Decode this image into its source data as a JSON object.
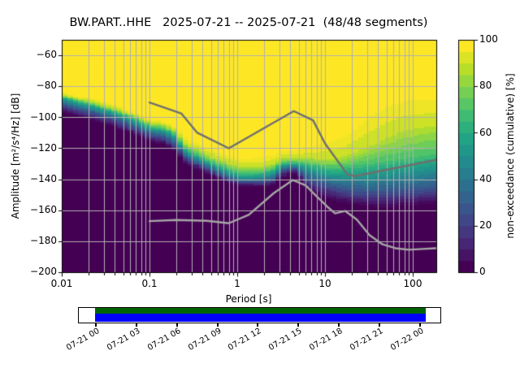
{
  "figure": {
    "title": "BW.PART..HHE   2025-07-21 -- 2025-07-21  (48/48 segments)",
    "background": "#ffffff"
  },
  "chart_data": {
    "type": "heatmap",
    "title": "BW.PART..HHE   2025-07-21 -- 2025-07-21  (48/48 segments)",
    "xlabel": "Period [s]",
    "ylabel": "Amplitude [m²/s⁴/Hz] [dB]",
    "colorbar_label": "non-exceedance (cumulative) [%]",
    "x_axis": {
      "scale": "log",
      "range_s": [
        0.01,
        185
      ],
      "ticks": [
        "0.01",
        "0.1",
        "1",
        "10",
        "100"
      ]
    },
    "y_axis": {
      "range_db": [
        -200,
        -50
      ],
      "ticks": [
        "−60",
        "−80",
        "−100",
        "−120",
        "−140",
        "−160",
        "−180",
        "−200"
      ]
    },
    "colorbar": {
      "range_pct": [
        0,
        100
      ],
      "ticks": [
        "0",
        "20",
        "40",
        "60",
        "80",
        "100"
      ],
      "steps": 20,
      "colormap": "viridis",
      "colors": [
        "#440154",
        "#482475",
        "#414487",
        "#355f8d",
        "#2a788e",
        "#21918c",
        "#22a884",
        "#44bf70",
        "#7ad151",
        "#bddf26",
        "#fde725"
      ]
    },
    "grid_color": "#b0b0b0",
    "percentile_levels": [
      0,
      10,
      30,
      50,
      70,
      90,
      100
    ],
    "columns": [
      {
        "p": 0.01,
        "db": [
          -96.5,
          -94.5,
          -91.5,
          -89,
          -87,
          -85.5,
          -83.5
        ]
      },
      {
        "p": 0.0135,
        "db": [
          -98.5,
          -96.5,
          -93.5,
          -91,
          -89,
          -87.5,
          -85.5
        ]
      },
      {
        "p": 0.018,
        "db": [
          -100.5,
          -98.5,
          -95,
          -92.5,
          -90.5,
          -89,
          -87
        ]
      },
      {
        "p": 0.024,
        "db": [
          -102.5,
          -100.5,
          -97,
          -94.5,
          -92.5,
          -91,
          -89
        ]
      },
      {
        "p": 0.032,
        "db": [
          -104.5,
          -102.5,
          -99,
          -96.5,
          -94.5,
          -93,
          -91
        ]
      },
      {
        "p": 0.043,
        "db": [
          -107,
          -105,
          -101.5,
          -99,
          -96.5,
          -95,
          -93
        ]
      },
      {
        "p": 0.058,
        "db": [
          -110,
          -108,
          -104.5,
          -102,
          -99.5,
          -97.5,
          -95.5
        ]
      },
      {
        "p": 0.077,
        "db": [
          -112.5,
          -110.5,
          -107.5,
          -105,
          -102.5,
          -100.5,
          -98.5
        ]
      },
      {
        "p": 0.104,
        "db": [
          -116,
          -114,
          -111,
          -108.5,
          -106,
          -104,
          -102
        ]
      },
      {
        "p": 0.139,
        "db": [
          -117,
          -115,
          -112,
          -109.5,
          -107,
          -104.5,
          -102.5
        ]
      },
      {
        "p": 0.186,
        "db": [
          -121,
          -119,
          -115.5,
          -112.5,
          -110,
          -107.5,
          -105
        ]
      },
      {
        "p": 0.25,
        "db": [
          -130,
          -127.5,
          -125,
          -122.5,
          -120,
          -116.5,
          -112.5
        ]
      },
      {
        "p": 0.33,
        "db": [
          -133.5,
          -131,
          -128.5,
          -126,
          -123.5,
          -120,
          -116
        ]
      },
      {
        "p": 0.45,
        "db": [
          -137,
          -135,
          -132.5,
          -130,
          -127.5,
          -124,
          -119.5
        ]
      },
      {
        "p": 0.6,
        "db": [
          -139.5,
          -138,
          -136,
          -133.5,
          -131,
          -127,
          -122.5
        ]
      },
      {
        "p": 0.8,
        "db": [
          -142.5,
          -141,
          -139,
          -136.5,
          -133.5,
          -129.5,
          -124.5
        ]
      },
      {
        "p": 1.07,
        "db": [
          -144.5,
          -143,
          -141,
          -139,
          -136,
          -132,
          -126.5
        ]
      },
      {
        "p": 1.44,
        "db": [
          -145,
          -143.5,
          -141.5,
          -139,
          -136,
          -132,
          -126.5
        ]
      },
      {
        "p": 1.93,
        "db": [
          -145.5,
          -143.5,
          -141,
          -138.5,
          -135.5,
          -131.5,
          -126
        ]
      },
      {
        "p": 2.58,
        "db": [
          -144,
          -142,
          -139.5,
          -136.5,
          -133.5,
          -129.5,
          -124.5
        ]
      },
      {
        "p": 3.46,
        "db": [
          -138.5,
          -136,
          -133.5,
          -131.5,
          -129,
          -126,
          -121.5
        ]
      },
      {
        "p": 4.64,
        "db": [
          -136.5,
          -134.5,
          -133,
          -131,
          -129,
          -126.5,
          -122.5
        ]
      },
      {
        "p": 6.2,
        "db": [
          -147,
          -144,
          -139,
          -134,
          -130,
          -126,
          -119
        ]
      },
      {
        "p": 8.3,
        "db": [
          -150.5,
          -147,
          -141,
          -136,
          -131.5,
          -127,
          -118
        ]
      },
      {
        "p": 11.1,
        "db": [
          -153,
          -149,
          -143.5,
          -138,
          -133,
          -127,
          -116
        ]
      },
      {
        "p": 14.9,
        "db": [
          -155,
          -151,
          -145,
          -138.5,
          -132.5,
          -126,
          -114
        ]
      },
      {
        "p": 19.9,
        "db": [
          -156,
          -152.5,
          -146,
          -138.5,
          -131.5,
          -124,
          -110
        ]
      },
      {
        "p": 26.6,
        "db": [
          -157,
          -153.5,
          -146.5,
          -138.5,
          -130.5,
          -121,
          -104
        ]
      },
      {
        "p": 35.6,
        "db": [
          -157.5,
          -154,
          -146.5,
          -138.5,
          -129.5,
          -118,
          -98
        ]
      },
      {
        "p": 47.6,
        "db": [
          -158,
          -154,
          -146.5,
          -138,
          -128.5,
          -114.5,
          -94
        ]
      },
      {
        "p": 63.7,
        "db": [
          -157.5,
          -153.5,
          -146,
          -136.5,
          -127.5,
          -111,
          -91
        ]
      },
      {
        "p": 85,
        "db": [
          -157,
          -153,
          -145.5,
          -136,
          -126.5,
          -108.5,
          -89.5
        ]
      },
      {
        "p": 114,
        "db": [
          -156.5,
          -152.5,
          -145,
          -135,
          -125.5,
          -107,
          -89
        ]
      },
      {
        "p": 152,
        "db": [
          -156,
          -152,
          -144.5,
          -134,
          -124.5,
          -106,
          -88.5
        ]
      },
      {
        "p": 185,
        "db": [
          -155.5,
          -151.5,
          -143.5,
          -133.5,
          -124,
          -105.5,
          -88.5
        ]
      }
    ],
    "noise_models": [
      {
        "name": "high-noise-model",
        "color": "#6f6f6f",
        "points": [
          [
            0.1,
            -90.5
          ],
          [
            0.23,
            -97.5
          ],
          [
            0.35,
            -110
          ],
          [
            0.8,
            -120
          ],
          [
            4.4,
            -96
          ],
          [
            7.3,
            -102
          ],
          [
            10,
            -117
          ],
          [
            18,
            -137
          ],
          [
            22,
            -138
          ],
          [
            185,
            -127.5
          ]
        ]
      },
      {
        "name": "low-noise-model",
        "color": "#a6a6a6",
        "points": [
          [
            0.1,
            -167
          ],
          [
            0.2,
            -166.3
          ],
          [
            0.45,
            -166.8
          ],
          [
            0.8,
            -168.4
          ],
          [
            1.35,
            -163
          ],
          [
            2.6,
            -149
          ],
          [
            4.3,
            -140.5
          ],
          [
            6,
            -144
          ],
          [
            8,
            -151
          ],
          [
            10.5,
            -157.5
          ],
          [
            13,
            -162
          ],
          [
            17,
            -160.5
          ],
          [
            23,
            -166
          ],
          [
            32,
            -176
          ],
          [
            45,
            -182
          ],
          [
            63,
            -184.5
          ],
          [
            90,
            -185.5
          ],
          [
            130,
            -185
          ],
          [
            185,
            -184.5
          ]
        ]
      }
    ],
    "timeline": {
      "labels": [
        "07-21 00",
        "07-21 03",
        "07-21 06",
        "07-21 09",
        "07-21 12",
        "07-21 15",
        "07-21 18",
        "07-21 21",
        "07-22 00"
      ],
      "coverage_color_top": "#006400",
      "coverage_color_bottom": "#0000ff",
      "border_color": "#000000"
    }
  }
}
